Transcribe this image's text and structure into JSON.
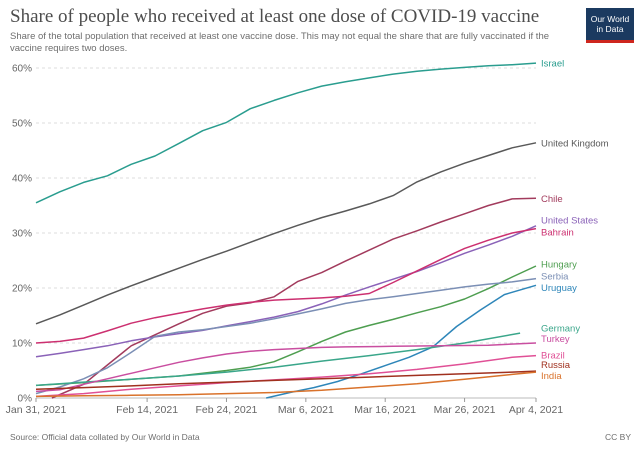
{
  "header": {
    "title": "Share of people who received at least one dose of COVID-19 vaccine",
    "subtitle": "Share of the total population that received at least one vaccine dose. This may not equal the share that are fully vaccinated if the vaccine requires two doses.",
    "logo_line1": "Our World",
    "logo_line2": "in Data"
  },
  "footer": {
    "source": "Source: Official data collated by Our World in Data",
    "license": "CC BY"
  },
  "chart_data": {
    "type": "line",
    "title": "Share of people who received at least one dose of COVID-19 vaccine",
    "xlabel": "",
    "ylabel": "",
    "x_start": "Jan 31, 2021",
    "x_end": "Apr 4, 2021",
    "ylim": [
      0,
      60
    ],
    "yticks": [
      0,
      10,
      20,
      30,
      40,
      50,
      60
    ],
    "ytick_labels": [
      "0%",
      "10%",
      "20%",
      "30%",
      "40%",
      "50%",
      "60%"
    ],
    "xticks": [
      {
        "date": "2021-01-31",
        "label": "Jan 31, 2021"
      },
      {
        "date": "2021-02-14",
        "label": "Feb 14, 2021"
      },
      {
        "date": "2021-02-24",
        "label": "Feb 24, 2021"
      },
      {
        "date": "2021-03-06",
        "label": "Mar 6, 2021"
      },
      {
        "date": "2021-03-16",
        "label": "Mar 16, 2021"
      },
      {
        "date": "2021-03-26",
        "label": "Mar 26, 2021"
      },
      {
        "date": "2021-04-04",
        "label": "Apr 4, 2021"
      }
    ],
    "grid": true,
    "series": [
      {
        "name": "Israel",
        "color": "#2a9d8f",
        "points": [
          [
            "2021-01-31",
            35.5
          ],
          [
            "2021-02-03",
            37.5
          ],
          [
            "2021-02-06",
            39.2
          ],
          [
            "2021-02-09",
            40.4
          ],
          [
            "2021-02-12",
            42.5
          ],
          [
            "2021-02-15",
            44.0
          ],
          [
            "2021-02-18",
            46.3
          ],
          [
            "2021-02-21",
            48.6
          ],
          [
            "2021-02-24",
            50.1
          ],
          [
            "2021-02-27",
            52.6
          ],
          [
            "2021-03-02",
            54.1
          ],
          [
            "2021-03-05",
            55.5
          ],
          [
            "2021-03-08",
            56.7
          ],
          [
            "2021-03-11",
            57.5
          ],
          [
            "2021-03-14",
            58.2
          ],
          [
            "2021-03-17",
            58.9
          ],
          [
            "2021-03-20",
            59.4
          ],
          [
            "2021-03-23",
            59.8
          ],
          [
            "2021-03-26",
            60.1
          ],
          [
            "2021-03-29",
            60.4
          ],
          [
            "2021-04-01",
            60.6
          ],
          [
            "2021-04-04",
            60.9
          ]
        ]
      },
      {
        "name": "United Kingdom",
        "color": "#595959",
        "points": [
          [
            "2021-01-31",
            13.5
          ],
          [
            "2021-02-03",
            15.1
          ],
          [
            "2021-02-06",
            16.9
          ],
          [
            "2021-02-09",
            18.7
          ],
          [
            "2021-02-12",
            20.4
          ],
          [
            "2021-02-15",
            22.0
          ],
          [
            "2021-02-18",
            23.6
          ],
          [
            "2021-02-21",
            25.2
          ],
          [
            "2021-02-24",
            26.7
          ],
          [
            "2021-02-27",
            28.3
          ],
          [
            "2021-03-02",
            29.9
          ],
          [
            "2021-03-05",
            31.4
          ],
          [
            "2021-03-08",
            32.8
          ],
          [
            "2021-03-11",
            34.0
          ],
          [
            "2021-03-14",
            35.3
          ],
          [
            "2021-03-17",
            36.8
          ],
          [
            "2021-03-20",
            39.3
          ],
          [
            "2021-03-23",
            41.1
          ],
          [
            "2021-03-26",
            42.7
          ],
          [
            "2021-03-29",
            44.1
          ],
          [
            "2021-04-01",
            45.5
          ],
          [
            "2021-04-04",
            46.4
          ]
        ]
      },
      {
        "name": "Chile",
        "color": "#a23b5d",
        "points": [
          [
            "2021-02-02",
            0.0
          ],
          [
            "2021-02-06",
            2.5
          ],
          [
            "2021-02-09",
            6.0
          ],
          [
            "2021-02-12",
            9.5
          ],
          [
            "2021-02-15",
            11.5
          ],
          [
            "2021-02-18",
            13.5
          ],
          [
            "2021-02-21",
            15.4
          ],
          [
            "2021-02-24",
            16.7
          ],
          [
            "2021-02-27",
            17.3
          ],
          [
            "2021-03-02",
            18.4
          ],
          [
            "2021-03-05",
            21.2
          ],
          [
            "2021-03-08",
            22.8
          ],
          [
            "2021-03-11",
            24.9
          ],
          [
            "2021-03-14",
            26.9
          ],
          [
            "2021-03-17",
            28.9
          ],
          [
            "2021-03-20",
            30.4
          ],
          [
            "2021-03-23",
            32.0
          ],
          [
            "2021-03-26",
            33.5
          ],
          [
            "2021-03-29",
            35.0
          ],
          [
            "2021-04-01",
            36.2
          ],
          [
            "2021-04-04",
            36.3
          ]
        ]
      },
      {
        "name": "United States",
        "color": "#8a62b8",
        "points": [
          [
            "2021-01-31",
            7.5
          ],
          [
            "2021-02-03",
            8.1
          ],
          [
            "2021-02-06",
            8.8
          ],
          [
            "2021-02-09",
            9.5
          ],
          [
            "2021-02-12",
            10.4
          ],
          [
            "2021-02-15",
            11.1
          ],
          [
            "2021-02-18",
            11.7
          ],
          [
            "2021-02-21",
            12.3
          ],
          [
            "2021-02-24",
            13.1
          ],
          [
            "2021-02-27",
            13.9
          ],
          [
            "2021-03-02",
            14.7
          ],
          [
            "2021-03-05",
            15.7
          ],
          [
            "2021-03-08",
            17.1
          ],
          [
            "2021-03-11",
            18.7
          ],
          [
            "2021-03-14",
            20.2
          ],
          [
            "2021-03-17",
            21.6
          ],
          [
            "2021-03-20",
            23.0
          ],
          [
            "2021-03-23",
            24.6
          ],
          [
            "2021-03-26",
            26.3
          ],
          [
            "2021-03-29",
            27.8
          ],
          [
            "2021-04-01",
            29.4
          ],
          [
            "2021-04-04",
            31.3
          ]
        ]
      },
      {
        "name": "Bahrain",
        "color": "#cc3070",
        "points": [
          [
            "2021-01-31",
            10.0
          ],
          [
            "2021-02-03",
            10.3
          ],
          [
            "2021-02-06",
            10.9
          ],
          [
            "2021-02-09",
            12.2
          ],
          [
            "2021-02-12",
            13.6
          ],
          [
            "2021-02-15",
            14.6
          ],
          [
            "2021-02-18",
            15.4
          ],
          [
            "2021-02-21",
            16.2
          ],
          [
            "2021-02-24",
            16.9
          ],
          [
            "2021-02-27",
            17.4
          ],
          [
            "2021-03-02",
            17.8
          ],
          [
            "2021-03-05",
            18.0
          ],
          [
            "2021-03-08",
            18.2
          ],
          [
            "2021-03-11",
            18.5
          ],
          [
            "2021-03-14",
            19.0
          ],
          [
            "2021-03-17",
            21.0
          ],
          [
            "2021-03-20",
            23.1
          ],
          [
            "2021-03-23",
            25.2
          ],
          [
            "2021-03-26",
            27.2
          ],
          [
            "2021-03-29",
            28.7
          ],
          [
            "2021-04-01",
            30.0
          ],
          [
            "2021-04-04",
            30.8
          ]
        ]
      },
      {
        "name": "Hungary",
        "color": "#4e9e50",
        "points": [
          [
            "2021-01-31",
            2.3
          ],
          [
            "2021-02-06",
            2.8
          ],
          [
            "2021-02-12",
            3.4
          ],
          [
            "2021-02-18",
            4.0
          ],
          [
            "2021-02-24",
            5.0
          ],
          [
            "2021-02-27",
            5.6
          ],
          [
            "2021-03-02",
            6.6
          ],
          [
            "2021-03-05",
            8.4
          ],
          [
            "2021-03-08",
            10.3
          ],
          [
            "2021-03-11",
            12.0
          ],
          [
            "2021-03-14",
            13.2
          ],
          [
            "2021-03-17",
            14.3
          ],
          [
            "2021-03-20",
            15.5
          ],
          [
            "2021-03-23",
            16.6
          ],
          [
            "2021-03-26",
            18.0
          ],
          [
            "2021-03-29",
            19.9
          ],
          [
            "2021-04-01",
            22.0
          ],
          [
            "2021-04-04",
            24.0
          ]
        ]
      },
      {
        "name": "Serbia",
        "color": "#7b8fb5",
        "points": [
          [
            "2021-01-31",
            0.8
          ],
          [
            "2021-02-03",
            2.0
          ],
          [
            "2021-02-06",
            3.5
          ],
          [
            "2021-02-09",
            5.5
          ],
          [
            "2021-02-12",
            8.3
          ],
          [
            "2021-02-15",
            11.2
          ],
          [
            "2021-02-18",
            12.0
          ],
          [
            "2021-02-21",
            12.4
          ],
          [
            "2021-02-24",
            13.0
          ],
          [
            "2021-02-27",
            13.6
          ],
          [
            "2021-03-02",
            14.4
          ],
          [
            "2021-03-05",
            15.3
          ],
          [
            "2021-03-08",
            16.2
          ],
          [
            "2021-03-11",
            17.2
          ],
          [
            "2021-03-14",
            17.9
          ],
          [
            "2021-03-17",
            18.4
          ],
          [
            "2021-03-20",
            19.0
          ],
          [
            "2021-03-23",
            19.6
          ],
          [
            "2021-03-26",
            20.2
          ],
          [
            "2021-03-29",
            20.7
          ],
          [
            "2021-04-01",
            21.1
          ],
          [
            "2021-04-04",
            21.7
          ]
        ]
      },
      {
        "name": "Uruguay",
        "color": "#2e86b9",
        "points": [
          [
            "2021-03-01",
            0.0
          ],
          [
            "2021-03-04",
            1.0
          ],
          [
            "2021-03-07",
            1.9
          ],
          [
            "2021-03-10",
            3.0
          ],
          [
            "2021-03-13",
            4.4
          ],
          [
            "2021-03-16",
            5.9
          ],
          [
            "2021-03-19",
            7.4
          ],
          [
            "2021-03-22",
            9.3
          ],
          [
            "2021-03-25",
            13.0
          ],
          [
            "2021-03-28",
            16.0
          ],
          [
            "2021-03-31",
            18.8
          ],
          [
            "2021-04-04",
            20.5
          ]
        ]
      },
      {
        "name": "Germany",
        "color": "#3aa68a",
        "points": [
          [
            "2021-01-31",
            2.3
          ],
          [
            "2021-02-06",
            2.9
          ],
          [
            "2021-02-12",
            3.4
          ],
          [
            "2021-02-18",
            4.0
          ],
          [
            "2021-02-24",
            4.7
          ],
          [
            "2021-03-02",
            5.6
          ],
          [
            "2021-03-08",
            6.7
          ],
          [
            "2021-03-14",
            7.7
          ],
          [
            "2021-03-20",
            8.8
          ],
          [
            "2021-03-26",
            10.0
          ],
          [
            "2021-04-02",
            11.8
          ]
        ]
      },
      {
        "name": "Turkey",
        "color": "#c94ea0",
        "points": [
          [
            "2021-01-31",
            1.2
          ],
          [
            "2021-02-03",
            1.5
          ],
          [
            "2021-02-06",
            2.5
          ],
          [
            "2021-02-09",
            3.5
          ],
          [
            "2021-02-12",
            4.5
          ],
          [
            "2021-02-15",
            5.5
          ],
          [
            "2021-02-18",
            6.5
          ],
          [
            "2021-02-21",
            7.3
          ],
          [
            "2021-02-24",
            8.0
          ],
          [
            "2021-02-27",
            8.5
          ],
          [
            "2021-03-02",
            8.8
          ],
          [
            "2021-03-05",
            9.0
          ],
          [
            "2021-03-08",
            9.2
          ],
          [
            "2021-03-11",
            9.3
          ],
          [
            "2021-03-17",
            9.4
          ],
          [
            "2021-03-23",
            9.5
          ],
          [
            "2021-03-29",
            9.6
          ],
          [
            "2021-04-04",
            10.0
          ]
        ]
      },
      {
        "name": "Brazil",
        "color": "#e05096",
        "points": [
          [
            "2021-01-31",
            0.3
          ],
          [
            "2021-02-06",
            0.8
          ],
          [
            "2021-02-12",
            1.6
          ],
          [
            "2021-02-18",
            2.2
          ],
          [
            "2021-02-24",
            2.8
          ],
          [
            "2021-03-02",
            3.3
          ],
          [
            "2021-03-08",
            3.8
          ],
          [
            "2021-03-14",
            4.4
          ],
          [
            "2021-03-20",
            5.2
          ],
          [
            "2021-03-26",
            6.2
          ],
          [
            "2021-04-01",
            7.4
          ],
          [
            "2021-04-04",
            7.7
          ]
        ]
      },
      {
        "name": "Russia",
        "color": "#a0301e",
        "points": [
          [
            "2021-01-31",
            1.6
          ],
          [
            "2021-02-06",
            1.9
          ],
          [
            "2021-02-12",
            2.2
          ],
          [
            "2021-02-18",
            2.6
          ],
          [
            "2021-02-24",
            2.9
          ],
          [
            "2021-03-02",
            3.2
          ],
          [
            "2021-03-08",
            3.5
          ],
          [
            "2021-03-14",
            3.8
          ],
          [
            "2021-03-20",
            4.1
          ],
          [
            "2021-03-26",
            4.4
          ],
          [
            "2021-04-01",
            4.7
          ],
          [
            "2021-04-04",
            4.9
          ]
        ]
      },
      {
        "name": "India",
        "color": "#d9722b",
        "points": [
          [
            "2021-01-31",
            0.3
          ],
          [
            "2021-02-06",
            0.4
          ],
          [
            "2021-02-12",
            0.5
          ],
          [
            "2021-02-18",
            0.6
          ],
          [
            "2021-02-24",
            0.8
          ],
          [
            "2021-03-02",
            1.0
          ],
          [
            "2021-03-08",
            1.4
          ],
          [
            "2021-03-14",
            2.0
          ],
          [
            "2021-03-20",
            2.6
          ],
          [
            "2021-03-26",
            3.4
          ],
          [
            "2021-04-01",
            4.3
          ],
          [
            "2021-04-04",
            4.7
          ]
        ]
      }
    ],
    "end_labels": [
      {
        "series": "Israel",
        "text": "Israel",
        "y": 60.9
      },
      {
        "series": "United Kingdom",
        "text": "United Kingdom",
        "y": 46.4
      },
      {
        "series": "Chile",
        "text": "Chile",
        "y": 36.3
      },
      {
        "series": "United States",
        "text": "United States",
        "y": 32.4
      },
      {
        "series": "Bahrain",
        "text": "Bahrain",
        "y": 30.2
      },
      {
        "series": "Hungary",
        "text": "Hungary",
        "y": 24.4
      },
      {
        "series": "Serbia",
        "text": "Serbia",
        "y": 22.2
      },
      {
        "series": "Uruguay",
        "text": "Uruguay",
        "y": 20.1
      },
      {
        "series": "Germany",
        "text": "Germany",
        "y": 12.7
      },
      {
        "series": "Turkey",
        "text": "Turkey",
        "y": 10.8
      },
      {
        "series": "Brazil",
        "text": "Brazil",
        "y": 7.8
      },
      {
        "series": "Russia",
        "text": "Russia",
        "y": 6.1
      },
      {
        "series": "India",
        "text": "India",
        "y": 4.1
      }
    ]
  }
}
